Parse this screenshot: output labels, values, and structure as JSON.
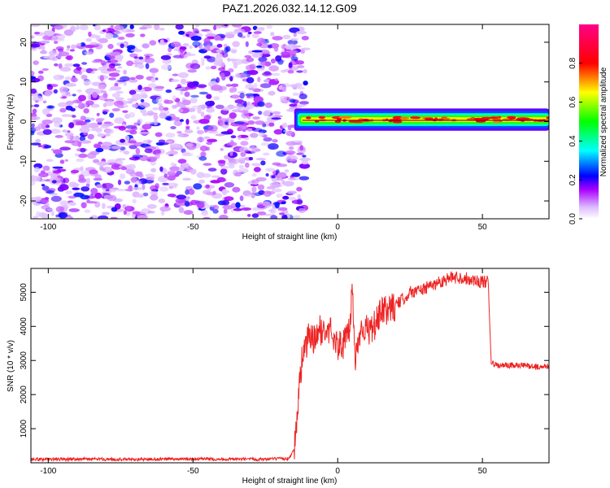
{
  "title": "PAZ1.2026.032.14.12.G09",
  "chart_data": [
    {
      "type": "heatmap",
      "xlabel": "Height of straight line (km)",
      "ylabel": "Frequency (Hz)",
      "xlim": [
        -106,
        73
      ],
      "ylim": [
        -24.5,
        24.5
      ],
      "xticks": [
        -100,
        -50,
        0,
        50
      ],
      "yticks": [
        -20,
        -10,
        0,
        10,
        20
      ],
      "grid": false,
      "colorbar": {
        "label": "Normalized spectral amplitude",
        "range": [
          0,
          1
        ],
        "ticks": [
          0,
          0.2,
          0.4,
          0.6,
          0.8
        ],
        "colors": [
          "#ffffff",
          "#aa00ff",
          "#0000ff",
          "#00ffff",
          "#00ff00",
          "#ffff00",
          "#ff0000",
          "#ff0088"
        ]
      },
      "noise_region": {
        "x_range": [
          -106,
          -15
        ],
        "freq_range": [
          -24.5,
          24.5
        ],
        "amplitude_range": [
          0.0,
          0.15
        ]
      },
      "signal_band": {
        "x_range": [
          -15,
          73
        ],
        "center_freq": 0.5,
        "half_width_hz": 2,
        "peak_amplitude": 0.85
      }
    },
    {
      "type": "line",
      "xlabel": "Height of straight line (km)",
      "ylabel": "SNR (10 * v/v)",
      "xlim": [
        -106,
        73
      ],
      "ylim": [
        0,
        5700
      ],
      "xticks": [
        -100,
        -50,
        0,
        50
      ],
      "yticks": [
        1000,
        2000,
        3000,
        4000,
        5000
      ],
      "grid": false,
      "series": [
        {
          "color": "#ee2222",
          "x": [
            -106,
            -90,
            -70,
            -50,
            -30,
            -17,
            -15,
            -13,
            -12,
            -11,
            -10,
            -8,
            -6,
            -4,
            -2,
            0,
            2,
            4,
            5,
            6,
            8,
            10,
            12,
            15,
            20,
            25,
            30,
            35,
            40,
            45,
            50,
            52,
            53,
            55,
            60,
            65,
            70,
            73
          ],
          "y": [
            100,
            110,
            100,
            110,
            100,
            120,
            400,
            2500,
            3300,
            3400,
            3700,
            3600,
            3900,
            3800,
            3900,
            3400,
            3500,
            3800,
            5200,
            3000,
            4000,
            3900,
            3900,
            4400,
            4600,
            5000,
            5100,
            5300,
            5450,
            5400,
            5300,
            5300,
            2950,
            2850,
            2850,
            2850,
            2800,
            2850
          ]
        }
      ]
    }
  ]
}
